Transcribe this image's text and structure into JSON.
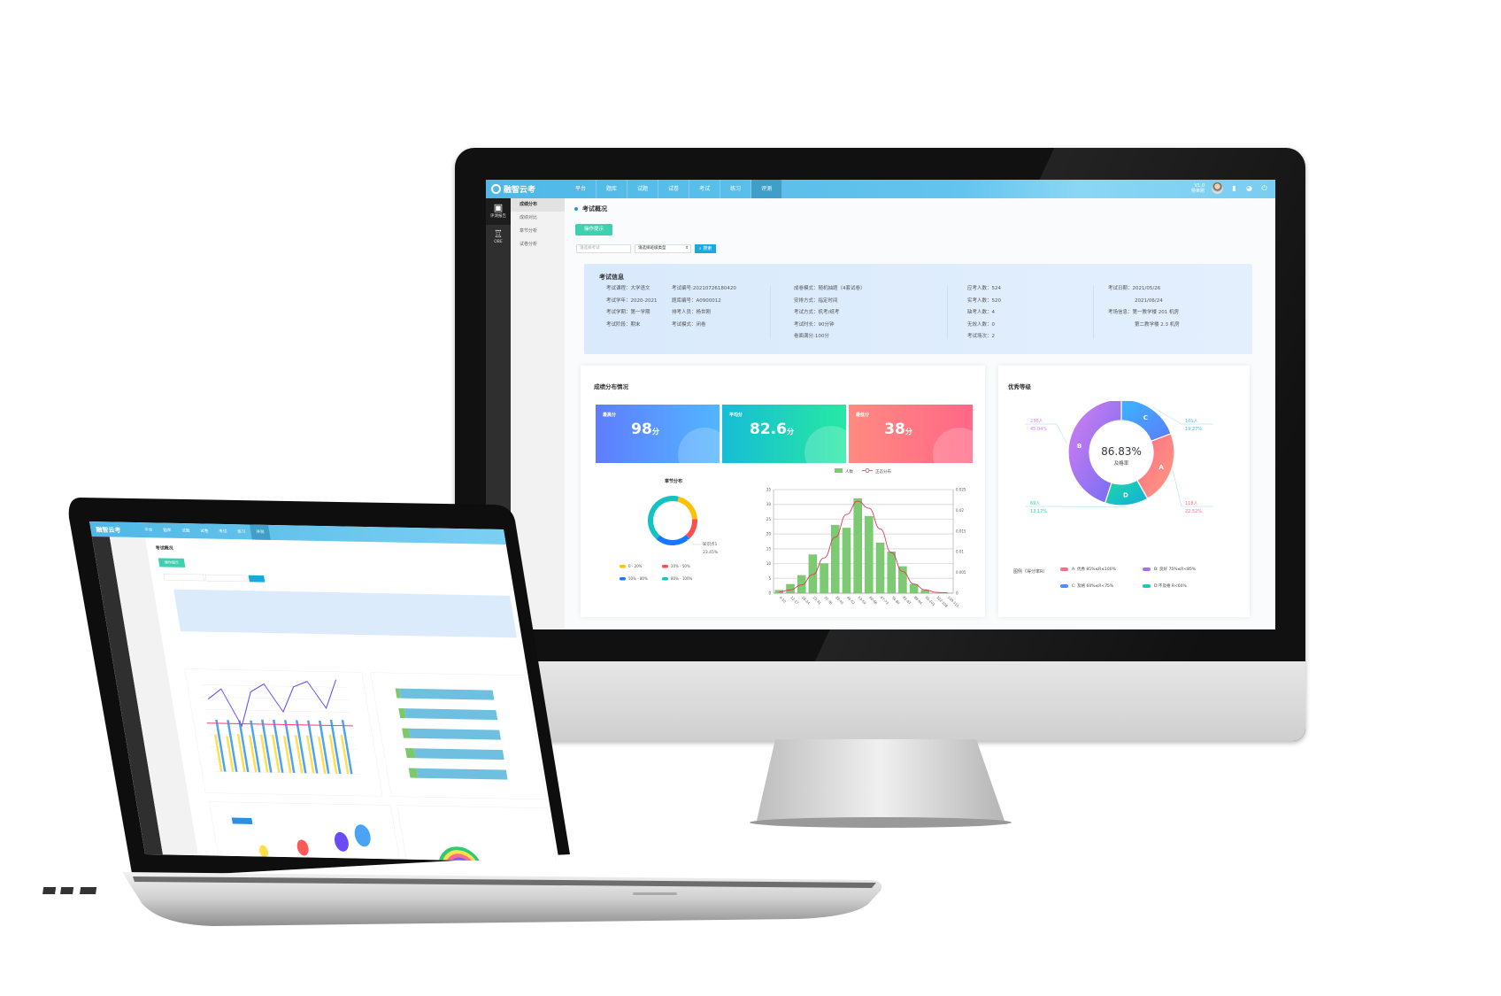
{
  "app": {
    "logo": "融智云考",
    "nav": [
      "平台",
      "题库",
      "试题",
      "试卷",
      "考试",
      "练习",
      "评测"
    ],
    "active_nav": "评测",
    "user_version": "V1.0",
    "user_name": "杨世刚",
    "header_icons": [
      "help-icon",
      "palette-icon",
      "power-icon"
    ]
  },
  "sidebar": [
    {
      "label": "评测报告",
      "icon": "report-icon"
    },
    {
      "label": "OBE",
      "icon": "trophy-icon"
    }
  ],
  "submenu": [
    "成绩分布",
    "成绩对比",
    "章节分析",
    "试卷分析"
  ],
  "page_title": "考试概况",
  "tip_button": "操作提示",
  "search": {
    "exam_placeholder": "请选择考试",
    "type_select": "请选择班级类型",
    "button": "搜索"
  },
  "info": {
    "title": "考试信息",
    "col1": [
      "考试课程：大学语文",
      "考试学年：2020-2021",
      "考试学期：第一学期",
      "考试阶段：期末"
    ],
    "col2": [
      "考试编号:20210726180420",
      "题库编号：A0900012",
      "排考人员：杨世刚",
      "考试模式：闭卷"
    ],
    "col3": [
      "成卷模式：随机抽题（4套试卷）",
      "安排方式：指定时间",
      "考试方式：机考/纸考",
      "考试时长：90分钟",
      "卷面满分:100分"
    ],
    "col4": [
      "应考人数：524",
      "实考人数：520",
      "缺考人数：4",
      "无效人数：0",
      "考试场次：2"
    ],
    "col5": [
      "考试日期：2021/05/26",
      "2021/06/24",
      "考场信息：第一教学楼 201 机房",
      "第二教学楼 2.3 机房"
    ]
  },
  "score_panel": {
    "title": "成绩分布情况",
    "cards": [
      {
        "label": "最高分",
        "value": "98",
        "unit": "分"
      },
      {
        "label": "平均分",
        "value": "82.6",
        "unit": "分"
      },
      {
        "label": "最低分",
        "value": "38",
        "unit": "分"
      }
    ]
  },
  "grade_panel": {
    "title": "优秀等级",
    "legend_title": "图例（得分率R）"
  },
  "colors": {
    "header": "#5bc0eb",
    "tip": "#3fd0b0",
    "search": "#1aa9dc",
    "bar": "#7ccb72",
    "curve": "#e8365d"
  },
  "chart_data": [
    {
      "type": "pie",
      "title": "章节分布",
      "legend": [
        "0 - 20%",
        "20% - 50%",
        "50% - 80%",
        "80% - 100%"
      ],
      "colors": [
        "#ffc107",
        "#ff4d4f",
        "#1677ff",
        "#13c2c2"
      ],
      "values": [
        20,
        14,
        23.45,
        42.55
      ],
      "callout": {
        "label": "知识点1",
        "value": "23.45%"
      }
    },
    {
      "type": "bar",
      "legend": [
        "人数",
        "正态分布"
      ],
      "categories": [
        "4-10",
        "11-17",
        "18-24",
        "25-31",
        "32-38",
        "39-45",
        "46-52",
        "53-59",
        "60-66",
        "67-73",
        "74-80",
        "81-87",
        "88-94",
        "95-101",
        "102-108",
        "109-115"
      ],
      "series": [
        {
          "name": "人数",
          "type": "bar",
          "values": [
            1,
            3,
            6,
            13,
            10,
            23,
            22,
            32,
            26,
            17,
            14,
            9,
            3,
            1,
            0,
            0
          ]
        },
        {
          "name": "正态分布",
          "type": "line",
          "axis": "right",
          "values": [
            0.0003,
            0.0008,
            0.002,
            0.0045,
            0.0085,
            0.0135,
            0.019,
            0.0222,
            0.0205,
            0.0155,
            0.0098,
            0.0052,
            0.0022,
            0.0008,
            0.0002,
            0.0001
          ]
        }
      ],
      "ylim": [
        0,
        35
      ],
      "yticks": [
        0,
        5,
        10,
        15,
        20,
        25,
        30,
        35
      ],
      "y2lim": [
        0,
        0.025
      ],
      "y2ticks": [
        "0",
        "0.005",
        "0.01",
        "0.015",
        "0.02",
        "0.025"
      ],
      "grid": true,
      "legend_position": "top"
    },
    {
      "type": "pie",
      "title": "优秀等级",
      "center_value": "86.83%",
      "center_label": "及格率",
      "segments": [
        {
          "letter": "C",
          "count": "101人",
          "pct": "19.27%",
          "value": 19.27,
          "colors": [
            "#39b6ff",
            "#5d7bff"
          ]
        },
        {
          "letter": "A",
          "count": "118人",
          "pct": "22.52%",
          "value": 22.52,
          "colors": [
            "#ff6b86",
            "#ff9e80"
          ]
        },
        {
          "letter": "D",
          "count": "69人",
          "pct": "13.17%",
          "value": 13.17,
          "colors": [
            "#21d9a4",
            "#10aedc"
          ]
        },
        {
          "letter": "B",
          "count": "236人",
          "pct": "45.04%",
          "value": 45.04,
          "colors": [
            "#d57ff0",
            "#6f6cf5"
          ]
        }
      ],
      "legend": [
        {
          "label": "A: 优秀 85%≤R≤100%",
          "color": "#ff6b86"
        },
        {
          "label": "B: 良好 75%≤R<85%",
          "color": "#a96ff2"
        },
        {
          "label": "C: 及格 60%≤R<75%",
          "color": "#4a8dff"
        },
        {
          "label": "D:不及格 R<60%",
          "color": "#21c9b4"
        }
      ]
    },
    {
      "type": "bar",
      "series": [
        {
          "type": "bar",
          "values": [
            32,
            31,
            33,
            32,
            33,
            33,
            32,
            33,
            33,
            32,
            34,
            34
          ]
        },
        {
          "type": "bar",
          "values": [
            45,
            45,
            45,
            45,
            46,
            46,
            46,
            46,
            46,
            46,
            47,
            47
          ]
        },
        {
          "type": "line",
          "values": [
            63,
            72,
            40,
            70,
            77,
            53,
            75,
            80,
            57,
            82
          ]
        }
      ],
      "reference_line": 42
    },
    {
      "type": "bar",
      "orientation": "horizontal",
      "series": [
        {
          "values": [
            4,
            6,
            7,
            9,
            8
          ]
        },
        {
          "values": [
            96,
            94,
            93,
            91,
            92
          ]
        }
      ]
    }
  ]
}
